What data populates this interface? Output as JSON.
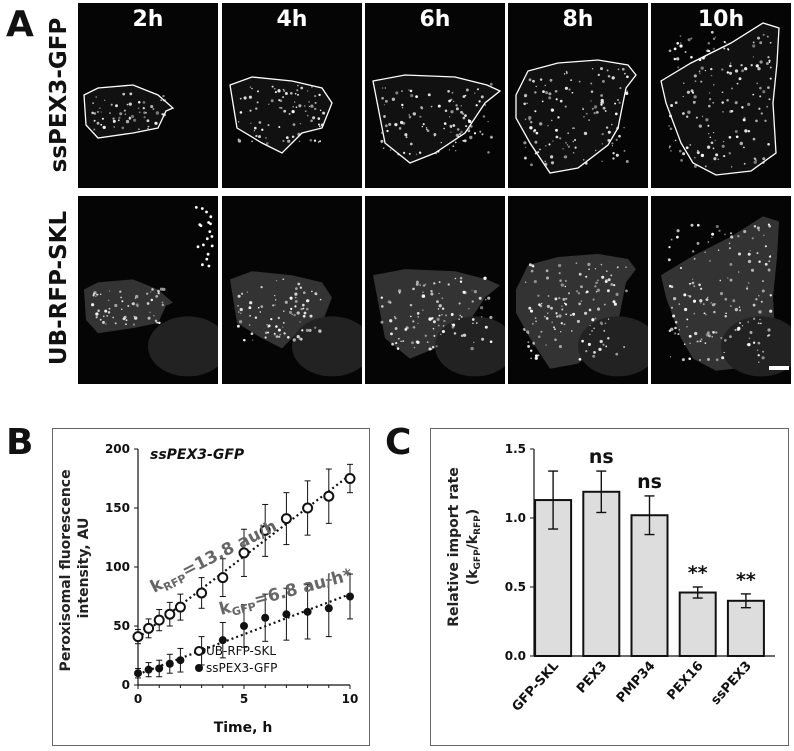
{
  "panel_a": {
    "letter": "A",
    "time_labels": [
      "2h",
      "4h",
      "6h",
      "8h",
      "10h"
    ],
    "row_labels": [
      "ssPEX3-GFP",
      "UB-RFP-SKL"
    ],
    "has_scale_bar": true
  },
  "panel_b": {
    "letter": "B",
    "chart_title": "ssPEX3-GFP",
    "k_rfp_prefix": "k",
    "k_rfp_sub": "RFP",
    "k_rfp_value": "=13.8 au/h",
    "k_gfp_prefix": "k",
    "k_gfp_sub": "GFP",
    "k_gfp_value": "=6.8 au/h*",
    "legend": [
      "UB-RFP-SKL",
      "ssPEX3-GFP"
    ]
  },
  "panel_c": {
    "letter": "C",
    "significance": [
      "",
      "ns",
      "ns",
      "**",
      "**"
    ]
  },
  "colors": {
    "bar_fill": "#dddddd",
    "signal": "#ffffff",
    "background": "#050505"
  },
  "chart_data": [
    {
      "type": "scatter",
      "title": "ssPEX3-GFP",
      "xlabel": "Time, h",
      "ylabel": "Peroxisomal fluorescence intensity, AU",
      "xlim": [
        0,
        10
      ],
      "ylim": [
        0,
        200
      ],
      "xticks": [
        0,
        5,
        10
      ],
      "yticks": [
        0,
        50,
        100,
        150,
        200
      ],
      "series": [
        {
          "name": "UB-RFP-SKL",
          "marker": "open-circle",
          "x": [
            0,
            0.5,
            1,
            1.5,
            2,
            3,
            4,
            5,
            6,
            7,
            8,
            9,
            10
          ],
          "y": [
            41,
            48,
            55,
            60,
            66,
            78,
            91,
            112,
            131,
            141,
            150,
            160,
            175
          ],
          "err": [
            6,
            8,
            9,
            10,
            11,
            13,
            16,
            20,
            22,
            22,
            23,
            23,
            12
          ]
        },
        {
          "name": "ssPEX3-GFP",
          "marker": "filled-circle",
          "x": [
            0,
            0.5,
            1,
            1.5,
            2,
            3,
            4,
            5,
            6,
            7,
            8,
            9,
            10
          ],
          "y": [
            10,
            13,
            14,
            18,
            21,
            29,
            38,
            50,
            57,
            60,
            62,
            65,
            75
          ],
          "err": [
            4,
            6,
            7,
            8,
            10,
            12,
            15,
            18,
            20,
            22,
            23,
            24,
            19
          ]
        }
      ],
      "fit_lines": [
        {
          "series": "UB-RFP-SKL",
          "slope": 13.8,
          "intercept": 40
        },
        {
          "series": "ssPEX3-GFP",
          "slope": 6.8,
          "intercept": 9
        }
      ]
    },
    {
      "type": "bar",
      "categories": [
        "GFP-SKL",
        "PEX3",
        "PMP34",
        "PEX16",
        "ssPEX3"
      ],
      "values": [
        1.13,
        1.19,
        1.02,
        0.46,
        0.4
      ],
      "err": [
        0.21,
        0.15,
        0.14,
        0.04,
        0.05
      ],
      "ylabel": "Relative import rate",
      "ylabel_sub_prefix": "(k",
      "ylabel_sub_num": "GFP",
      "ylabel_sub_sep": "/k",
      "ylabel_sub_den": "RFP",
      "ylabel_sub_suffix": ")",
      "ylim": [
        0,
        1.5
      ],
      "yticks": [
        "0.0",
        "0.5",
        "1.0",
        "1.5"
      ]
    }
  ]
}
